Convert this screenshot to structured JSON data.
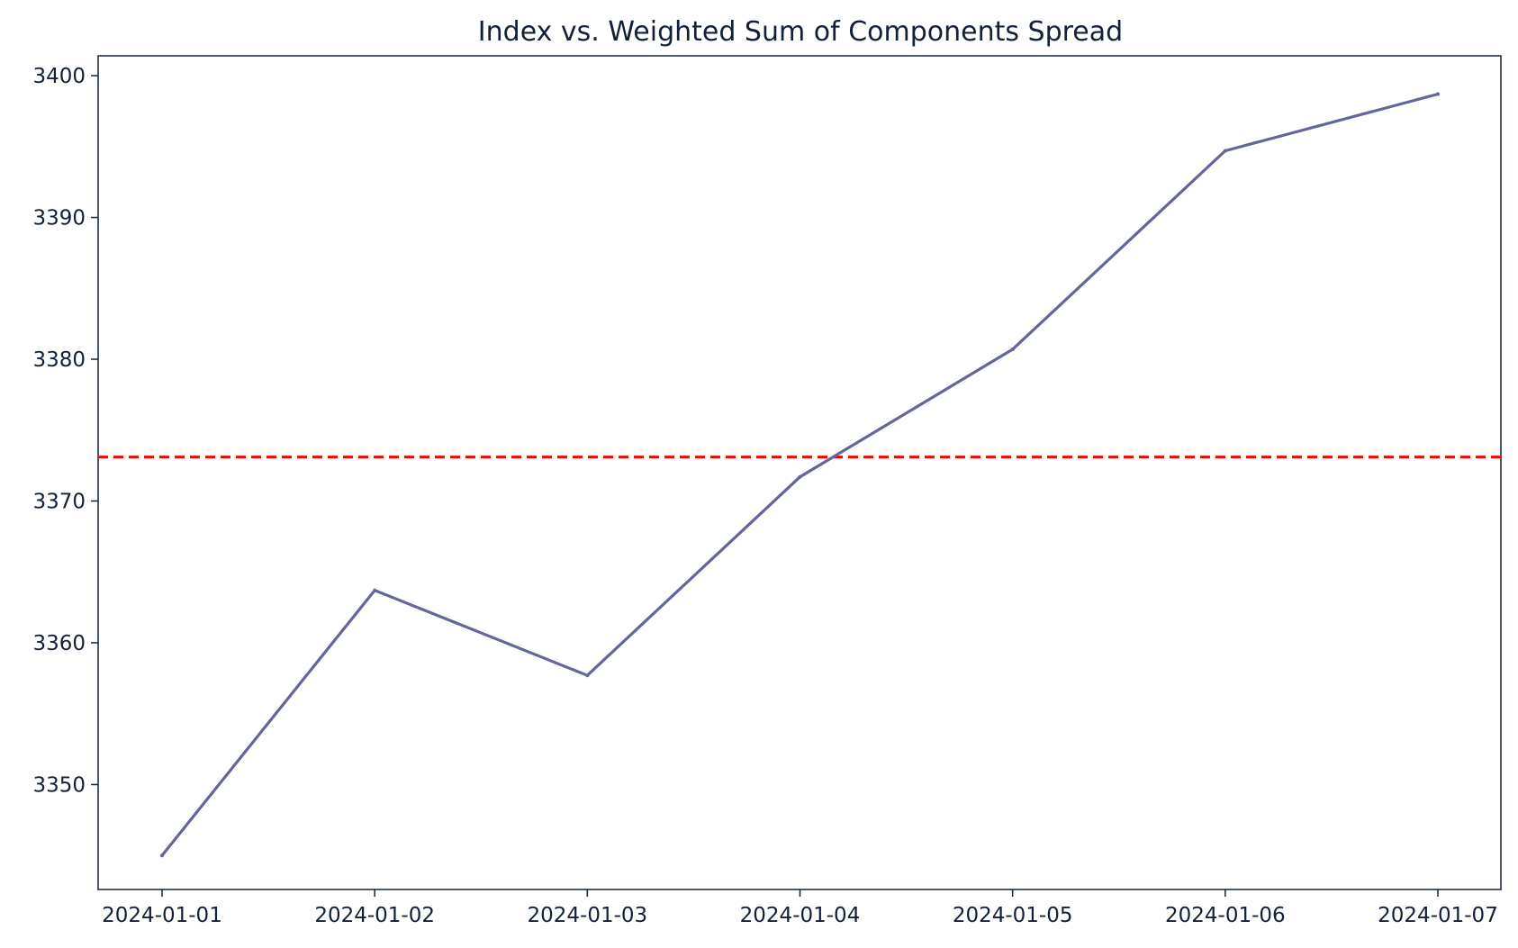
{
  "chart_data": {
    "type": "line",
    "title": "Index vs. Weighted Sum of Components Spread",
    "xlabel": "",
    "ylabel": "",
    "x": [
      "2024-01-01",
      "2024-01-02",
      "2024-01-03",
      "2024-01-04",
      "2024-01-05",
      "2024-01-06",
      "2024-01-07"
    ],
    "series": [
      {
        "values": [
          3345.0,
          3363.7,
          3357.7,
          3371.7,
          3380.7,
          3394.7,
          3398.7
        ],
        "color": "#63659d",
        "style": "solid"
      }
    ],
    "reference_line": {
      "orientation": "horizontal",
      "value": 3373.1,
      "color": "#ff0000",
      "style": "dashed"
    },
    "ylim": [
      3342.6,
      3401.4
    ],
    "yticks": [
      3350,
      3360,
      3370,
      3380,
      3390,
      3400
    ],
    "xticks": [
      "2024-01-01",
      "2024-01-02",
      "2024-01-03",
      "2024-01-04",
      "2024-01-05",
      "2024-01-06",
      "2024-01-07"
    ],
    "grid": false,
    "legend": "none"
  }
}
